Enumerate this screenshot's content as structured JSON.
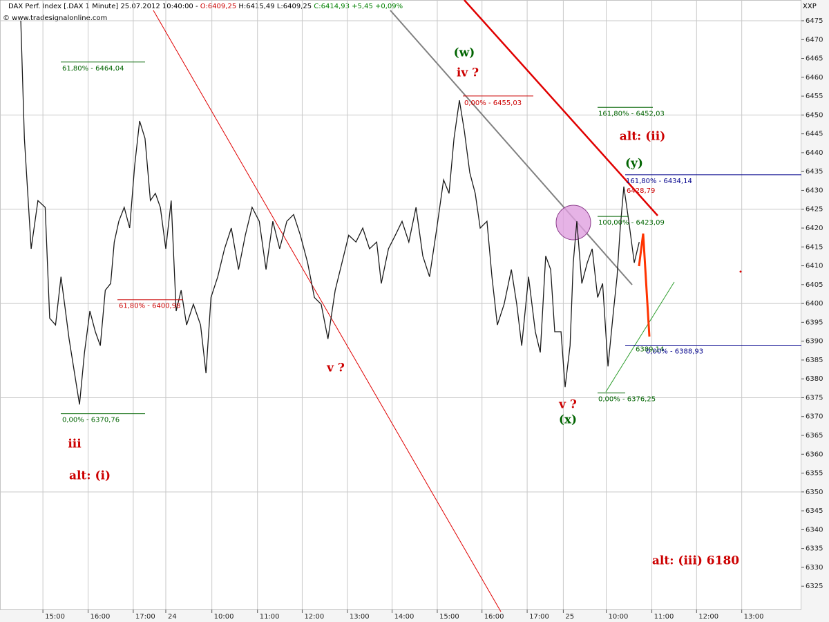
{
  "chart_data": {
    "type": "line",
    "header": {
      "title": "DAX Perf. Index [.DAX  1 Minute] 25.07.2012 10:40:00 -",
      "open": "O:6409,25",
      "high": "H:6415,49",
      "low": "L:6409,25",
      "close": "C:6414,93 +5,45 +0,09%",
      "source": "© www.tradesignalonline.com",
      "corner": "XXP"
    },
    "color": "#1a1a1a",
    "x": [
      0.51,
      0.59,
      0.74,
      0.89,
      1.05,
      1.15,
      1.28,
      1.4,
      1.5,
      1.58,
      1.7,
      1.81,
      1.92,
      2.04,
      2.16,
      2.27,
      2.38,
      2.5,
      2.58,
      2.68,
      2.8,
      2.92,
      3.03,
      3.14,
      3.26,
      3.38,
      3.49,
      3.6,
      3.72,
      3.84,
      3.95,
      4.06,
      4.18,
      4.33,
      4.49,
      4.61,
      4.72,
      4.87,
      5.02,
      5.17,
      5.33,
      5.48,
      5.63,
      5.79,
      5.94,
      6.09,
      6.24,
      6.4,
      6.55,
      6.7,
      6.86,
      7.01,
      7.16,
      7.31,
      7.47,
      7.62,
      7.77,
      7.93,
      8.08,
      8.23,
      8.39,
      8.49,
      8.65,
      8.8,
      8.95,
      9.1,
      9.26,
      9.41,
      9.56,
      9.72,
      9.87,
      9.99,
      10.1,
      10.22,
      10.33,
      10.45,
      10.57,
      10.68,
      10.83,
      10.94,
      11.06,
      11.21,
      11.37,
      11.49,
      11.6,
      11.75,
      11.9,
      12.01,
      12.13,
      12.24,
      12.33,
      12.47,
      12.56,
      12.67,
      12.74,
      12.82,
      12.93,
      13.05,
      13.16,
      13.28,
      13.39,
      13.51,
      13.63,
      13.71,
      13.78,
      13.86,
      13.97,
      14.09,
      14.2
    ],
    "values": [
      6475,
      6443.8,
      6414.5,
      6427.3,
      6425.5,
      6396.1,
      6394.3,
      6407.1,
      6398.0,
      6390.6,
      6381.5,
      6373.2,
      6387.0,
      6398.0,
      6392.5,
      6388.8,
      6403.5,
      6405.3,
      6416.3,
      6421.8,
      6425.5,
      6420.0,
      6436.5,
      6448.4,
      6443.8,
      6427.3,
      6429.2,
      6425.5,
      6414.5,
      6427.3,
      6398.0,
      6403.5,
      6394.3,
      6399.8,
      6394.3,
      6381.5,
      6401.6,
      6407.1,
      6414.5,
      6420.0,
      6409.0,
      6418.1,
      6425.5,
      6421.8,
      6409.0,
      6421.8,
      6414.5,
      6421.8,
      6423.6,
      6418.1,
      6410.8,
      6401.6,
      6399.8,
      6390.6,
      6403.5,
      6410.8,
      6418.1,
      6416.3,
      6420.0,
      6414.5,
      6416.3,
      6405.3,
      6414.5,
      6418.1,
      6421.8,
      6416.3,
      6425.5,
      6412.6,
      6407.1,
      6420.0,
      6432.8,
      6429.2,
      6443.8,
      6453.9,
      6445.7,
      6434.7,
      6429.2,
      6420.0,
      6421.8,
      6407.1,
      6394.3,
      6399.8,
      6409.0,
      6399.8,
      6388.8,
      6407.1,
      6392.5,
      6387.0,
      6412.6,
      6409.0,
      6392.5,
      6392.5,
      6377.8,
      6388.8,
      6410.8,
      6421.8,
      6405.3,
      6410.8,
      6414.5,
      6401.6,
      6405.3,
      6383.3,
      6398.0,
      6407.1,
      6420.0,
      6431.0,
      6421.8,
      6410.8,
      6416.3
    ],
    "xlim": [
      0.05,
      17.79
    ],
    "ylim": [
      6318.8,
      6480.5
    ],
    "xticks": [
      {
        "value": 1,
        "label": "15:00"
      },
      {
        "value": 2,
        "label": "16:00"
      },
      {
        "value": 3,
        "label": "17:00"
      },
      {
        "value": 3.72,
        "label": "24"
      },
      {
        "value": 4.74,
        "label": "10:00"
      },
      {
        "value": 5.75,
        "label": "11:00"
      },
      {
        "value": 6.74,
        "label": "12:00"
      },
      {
        "value": 7.74,
        "label": "13:00"
      },
      {
        "value": 8.73,
        "label": "14:00"
      },
      {
        "value": 9.73,
        "label": "15:00"
      },
      {
        "value": 10.72,
        "label": "16:00"
      },
      {
        "value": 11.72,
        "label": "17:00"
      },
      {
        "value": 12.52,
        "label": "25"
      },
      {
        "value": 13.47,
        "label": "10:00"
      },
      {
        "value": 14.48,
        "label": "11:00"
      },
      {
        "value": 15.47,
        "label": "12:00"
      },
      {
        "value": 16.47,
        "label": "13:00"
      }
    ],
    "yticks": [
      6325,
      6330,
      6335,
      6340,
      6345,
      6350,
      6355,
      6360,
      6365,
      6370,
      6375,
      6380,
      6385,
      6390,
      6395,
      6400,
      6405,
      6410,
      6415,
      6420,
      6425,
      6430,
      6435,
      6440,
      6445,
      6450,
      6455,
      6460,
      6465,
      6470,
      6475
    ],
    "ygrid": [
      6350,
      6375,
      6400,
      6425,
      6450,
      6475
    ],
    "grid": true,
    "levels": [
      {
        "label": "61,80% - 6464,04",
        "value": 6464.04,
        "color": "#006400"
      },
      {
        "label": "0,00% - 6370,76",
        "value": 6370.76,
        "color": "#006400"
      },
      {
        "label": "61,80% - 6400,98",
        "value": 6400.98,
        "color": "#cc0000"
      },
      {
        "label": "0,00% - 6455,03",
        "value": 6455.03,
        "color": "#cc0000"
      },
      {
        "label": "161,80% - 6452,03",
        "value": 6452.03,
        "color": "#006400"
      },
      {
        "label": "161,80% - 6434,14",
        "value": 6434.14,
        "color": "#00008b"
      },
      {
        "label": "6428,79",
        "value": 6428.79,
        "color": "#cc0000"
      },
      {
        "label": "100,00% - 6423,09",
        "value": 6423.09,
        "color": "#006400"
      },
      {
        "label": "6389,14",
        "value": 6389.14,
        "color": "#006400"
      },
      {
        "label": "0,00% - 6388,93",
        "value": 6388.93,
        "color": "#00008b"
      },
      {
        "label": "0,00% - 6376,25",
        "value": 6376.25,
        "color": "#006400"
      }
    ],
    "waves": [
      {
        "text": "(w)",
        "color": "#006400"
      },
      {
        "text": "iv ?",
        "color": "#cc0000"
      },
      {
        "text": "alt: (ii)",
        "color": "#cc0000"
      },
      {
        "text": "(y)",
        "color": "#006400"
      },
      {
        "text": "v ?",
        "color": "#cc0000"
      },
      {
        "text": "v ?",
        "color": "#cc0000"
      },
      {
        "text": "(x)",
        "color": "#006400"
      },
      {
        "text": "iii",
        "color": "#cc0000"
      },
      {
        "text": "alt: (i)",
        "color": "#cc0000"
      },
      {
        "text": "alt: (iii) 6180",
        "color": "#cc0000"
      }
    ]
  }
}
